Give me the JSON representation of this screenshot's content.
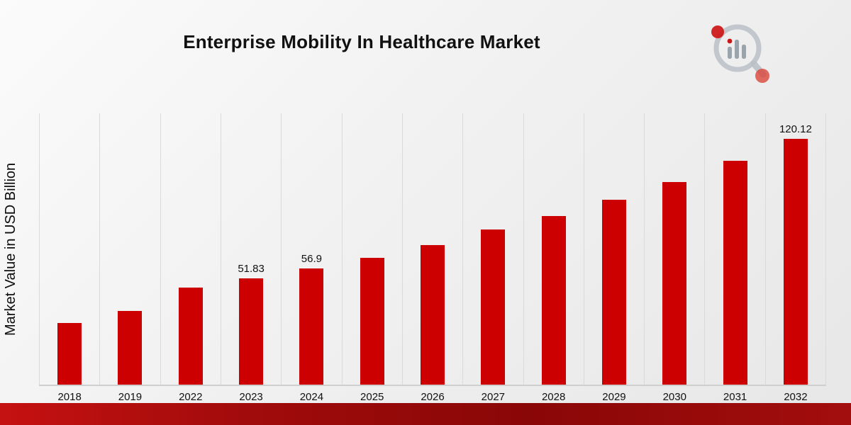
{
  "header": {
    "title": "Enterprise Mobility In Healthcare Market",
    "logo_icon": "magnifier-bar-chart-icon"
  },
  "chart_data": {
    "type": "bar",
    "title": "Enterprise Mobility In Healthcare Market",
    "ylabel": "Market Value in USD Billion",
    "xlabel": "",
    "categories": [
      "2018",
      "2019",
      "2022",
      "2023",
      "2024",
      "2025",
      "2026",
      "2027",
      "2028",
      "2029",
      "2030",
      "2031",
      "2032"
    ],
    "values": [
      30.2,
      36.1,
      47.4,
      51.83,
      56.9,
      62.1,
      68.3,
      75.8,
      82.4,
      90.2,
      99.1,
      109.2,
      120.12
    ],
    "bar_labels": [
      "",
      "",
      "",
      "51.83",
      "56.9",
      "",
      "",
      "",
      "",
      "",
      "",
      "",
      "120.12"
    ],
    "ylim": [
      0,
      132.5
    ],
    "grid": "vertical-only",
    "legend": "none",
    "bar_color": "#CC0001",
    "grid_color": "#DADADA",
    "background": "#EFEFEF",
    "footer_color": "#9C0B0B"
  }
}
